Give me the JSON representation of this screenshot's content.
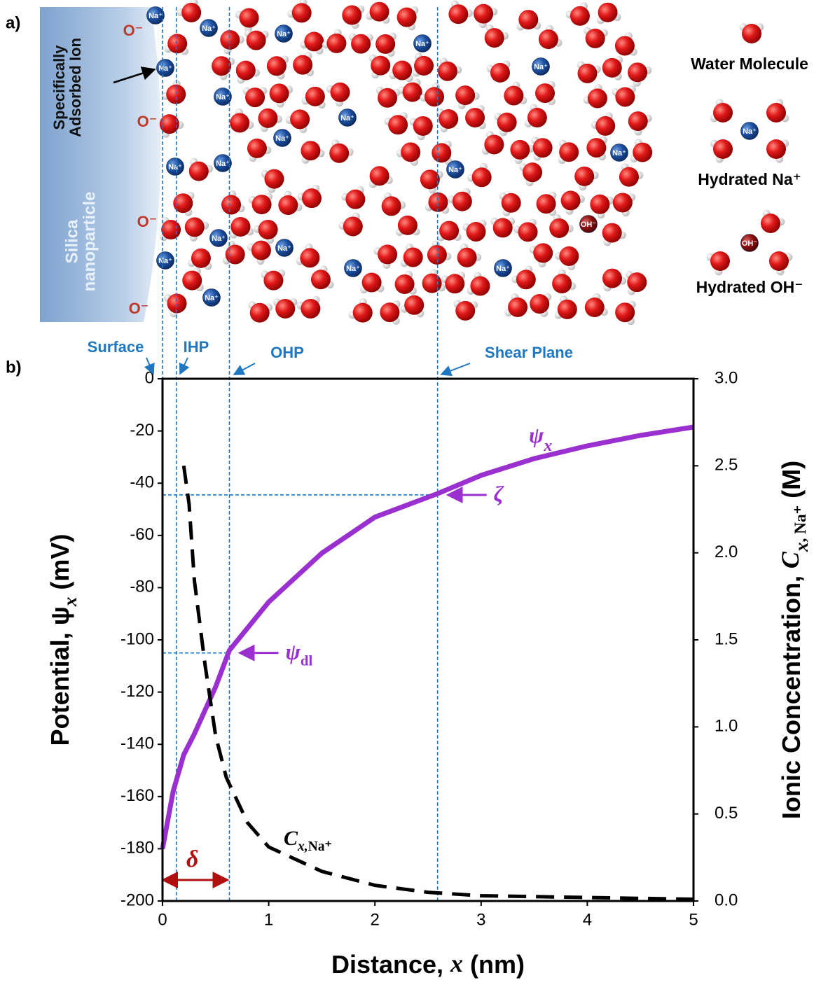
{
  "figure": {
    "panel_a_label": "a)",
    "panel_b_label": "b)"
  },
  "illustration": {
    "surface_name": [
      "Silica",
      "nanoparticle"
    ],
    "adsorbed_label": [
      "Specifically",
      "Adsorbed Ion"
    ],
    "surface_charge": "O⁻",
    "ion_label": "Na⁺",
    "hydroxide_label": "OH⁻",
    "legend": [
      "Water Molecule",
      "Hydrated Na⁺",
      "Hydrated OH⁻"
    ]
  },
  "chart_data": {
    "type": "line",
    "x_label": [
      "Distance, ",
      "x",
      " (nm)"
    ],
    "y_label": [
      "Potential, ψ",
      "x",
      " (mV)"
    ],
    "y2_label": [
      "Ionic Concentration, ",
      "C",
      "x",
      ", Na⁺",
      " (M)"
    ],
    "xlim": [
      0,
      5
    ],
    "xticks": [
      0,
      1,
      2,
      3,
      4,
      5
    ],
    "ylim": [
      -200,
      0
    ],
    "yticks": [
      -200,
      -180,
      -160,
      -140,
      -120,
      -100,
      -80,
      -60,
      -40,
      -20,
      0
    ],
    "y2lim": [
      0,
      3
    ],
    "y2ticks": [
      {
        "value": 0,
        "label": "0.0"
      },
      0.5,
      {
        "value": 1,
        "label": "1.0"
      },
      1.5,
      {
        "value": 2,
        "label": "2.0"
      },
      2.5,
      {
        "value": 3,
        "label": "3.0"
      }
    ],
    "series": [
      {
        "name": [
          "ψ",
          "x"
        ],
        "color": "#9b30d0",
        "style": "solid",
        "x": [
          0,
          0.1,
          0.2,
          0.3,
          0.4,
          0.5,
          0.63,
          1,
          1.5,
          2,
          2.59,
          3,
          3.5,
          4,
          4.5,
          5
        ],
        "values": [
          -180,
          -158,
          -144,
          -136,
          -127,
          -118,
          -104,
          -85.5,
          -66.8,
          -53,
          -44,
          -37,
          -30.6,
          -25.7,
          -21.7,
          -18.5
        ]
      },
      {
        "name": [
          "C",
          "x,",
          "Na⁺"
        ],
        "color": "#000000",
        "style": "dashed",
        "axis": "y2",
        "x": [
          0.2,
          0.25,
          0.3,
          0.4,
          0.5,
          0.6,
          0.8,
          1,
          1.5,
          2,
          2.5,
          3,
          4,
          5
        ],
        "values": [
          2.5,
          2.28,
          1.84,
          1.36,
          0.95,
          0.71,
          0.45,
          0.31,
          0.17,
          0.09,
          0.05,
          0.03,
          0.02,
          0.01
        ]
      }
    ],
    "planes": [
      {
        "label": "Surface",
        "x": 0
      },
      {
        "label": "IHP",
        "x": 0.13
      },
      {
        "label": "OHP",
        "x": 0.63
      },
      {
        "label": "Shear Plane",
        "x": 2.59
      }
    ],
    "levels": [
      {
        "symbol": [
          "ζ"
        ],
        "value": -44.5
      },
      {
        "symbol": [
          "ψ",
          "dl"
        ],
        "value": -105
      }
    ],
    "delta": {
      "label": "δ",
      "from": 0,
      "to": 0.63
    }
  }
}
